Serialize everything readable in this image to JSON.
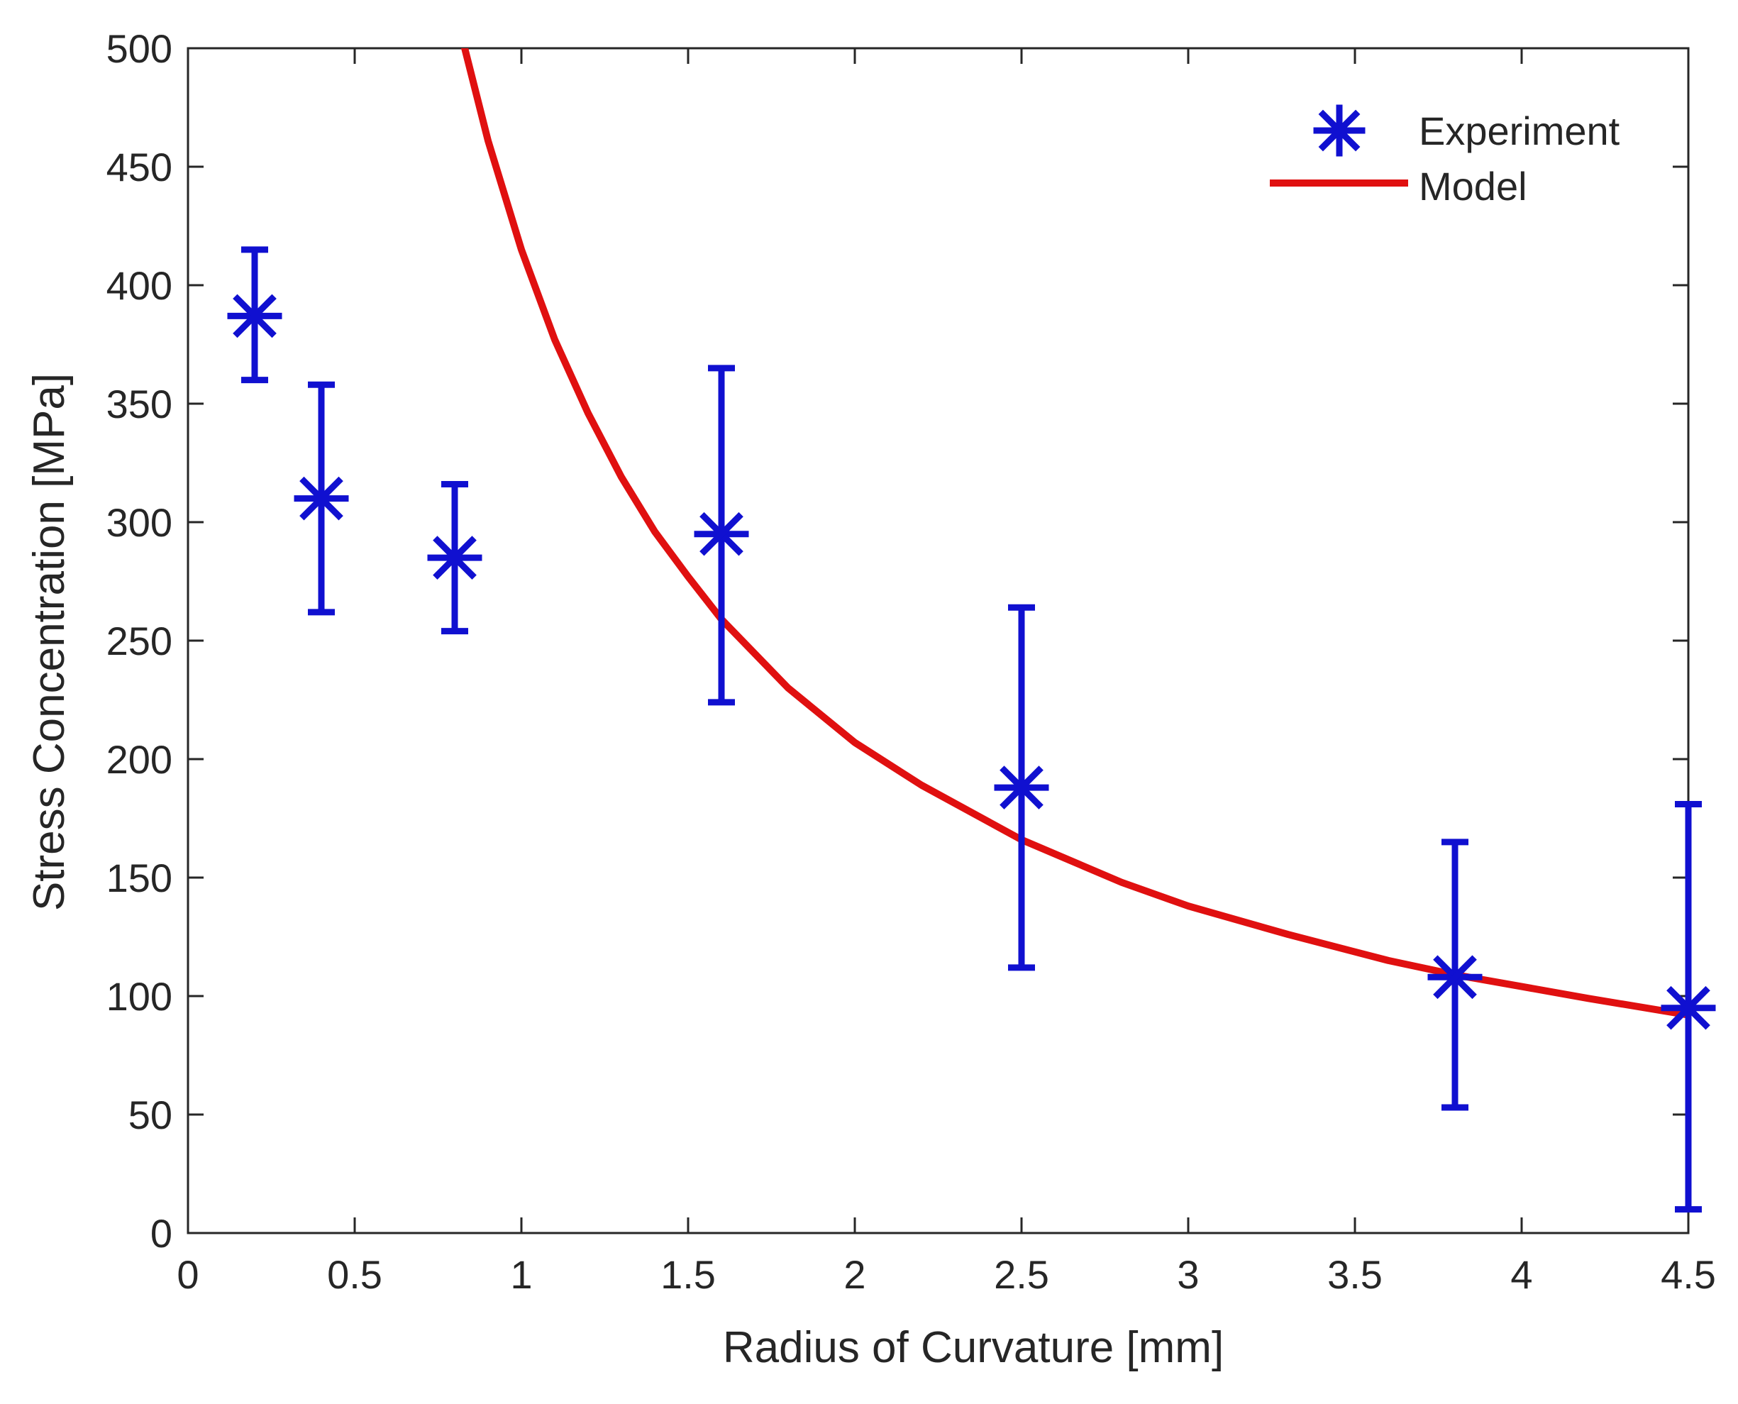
{
  "chart_data": {
    "type": "scatter",
    "title": "",
    "xlabel": "Radius of Curvature [mm]",
    "ylabel": "Stress Concentration [MPa]",
    "xlim": [
      0,
      4.5
    ],
    "ylim": [
      0,
      500
    ],
    "xticks": [
      0,
      0.5,
      1,
      1.5,
      2,
      2.5,
      3,
      3.5,
      4,
      4.5
    ],
    "xtick_labels": [
      "0",
      "0.5",
      "1",
      "1.5",
      "2",
      "2.5",
      "3",
      "3.5",
      "4",
      "4.5"
    ],
    "yticks": [
      0,
      50,
      100,
      150,
      200,
      250,
      300,
      350,
      400,
      450,
      500
    ],
    "ytick_labels": [
      "0",
      "50",
      "100",
      "150",
      "200",
      "250",
      "300",
      "350",
      "400",
      "450",
      "500"
    ],
    "grid": false,
    "legend_position": "top-right",
    "series": [
      {
        "name": "Experiment",
        "kind": "errorbar",
        "marker": "asterisk",
        "color": "#1010d0",
        "x": [
          0.2,
          0.4,
          0.8,
          1.6,
          2.5,
          3.8,
          4.5
        ],
        "y": [
          387,
          310,
          285,
          295,
          188,
          108,
          95
        ],
        "y_lower": [
          360,
          262,
          254,
          224,
          112,
          53,
          10
        ],
        "y_upper": [
          415,
          358,
          316,
          365,
          264,
          165,
          181
        ]
      },
      {
        "name": "Model",
        "kind": "line",
        "color": "#e01010",
        "x": [
          0.83,
          0.9,
          1.0,
          1.1,
          1.2,
          1.3,
          1.4,
          1.5,
          1.6,
          1.8,
          2.0,
          2.2,
          2.5,
          2.8,
          3.0,
          3.3,
          3.6,
          3.8,
          4.0,
          4.2,
          4.5
        ],
        "y": [
          500,
          461,
          415,
          377,
          346,
          319,
          296,
          277,
          259,
          230,
          207,
          189,
          166,
          148,
          138,
          126,
          115,
          109,
          104,
          99,
          92
        ]
      }
    ]
  }
}
